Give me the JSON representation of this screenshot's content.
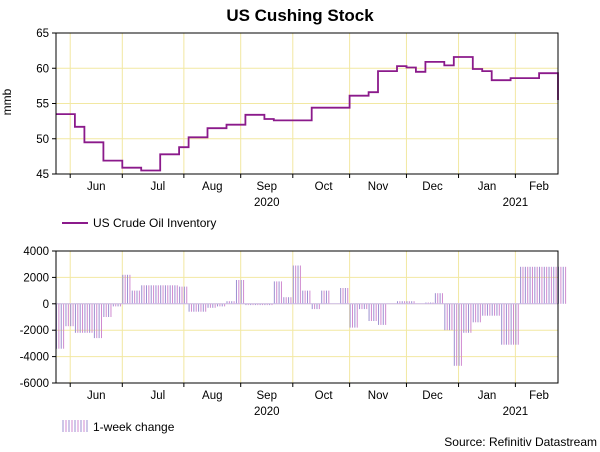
{
  "chart_data": [
    {
      "type": "line",
      "title": "US Cushing Stock",
      "ylabel": "mmb",
      "ylim": [
        45,
        65
      ],
      "yticks": [
        45,
        50,
        55,
        60,
        65
      ],
      "grid": true,
      "xlim": [
        0,
        106
      ],
      "month_ticks": [
        {
          "label": "Jun",
          "x": 8.5
        },
        {
          "label": "Jul",
          "x": 21.5
        },
        {
          "label": "Aug",
          "x": 33
        },
        {
          "label": "Sep",
          "x": 44.5
        },
        {
          "label": "Oct",
          "x": 56.5
        },
        {
          "label": "Nov",
          "x": 68
        },
        {
          "label": "Dec",
          "x": 79.5
        },
        {
          "label": "Jan",
          "x": 91
        },
        {
          "label": "Feb",
          "x": 102
        }
      ],
      "month_boundaries": [
        3,
        14,
        27,
        39,
        50,
        62,
        74,
        85,
        97
      ],
      "year_labels": [
        {
          "label": "2020",
          "x": 44.5
        },
        {
          "label": "2021",
          "x": 97
        }
      ],
      "series": [
        {
          "name": "US Crude Oil Inventory",
          "color": "#8b1a8b",
          "x": [
            0,
            2,
            4,
            6,
            8,
            10,
            12,
            14,
            16,
            18,
            20,
            22,
            24,
            26,
            28,
            30,
            32,
            34,
            36,
            38,
            40,
            42,
            44,
            46,
            48,
            50,
            52,
            54,
            56,
            58,
            60,
            62,
            64,
            66,
            68,
            70,
            72,
            74,
            76,
            78,
            80,
            82,
            84,
            86,
            88,
            90,
            92,
            94,
            96,
            98,
            100,
            102,
            104,
            106
          ],
          "values": [
            53.5,
            53.5,
            51.7,
            49.5,
            49.5,
            46.9,
            46.9,
            45.9,
            45.9,
            45.5,
            45.5,
            47.8,
            47.8,
            48.8,
            50.2,
            50.2,
            51.5,
            51.5,
            52.0,
            52.0,
            53.4,
            53.4,
            52.8,
            52.6,
            52.6,
            52.6,
            52.6,
            54.4,
            54.4,
            54.4,
            54.4,
            56.1,
            56.1,
            56.6,
            59.6,
            59.6,
            60.3,
            60.1,
            59.5,
            60.9,
            60.9,
            60.4,
            61.6,
            61.6,
            59.9,
            59.6,
            58.3,
            58.3,
            58.6,
            58.6,
            58.6,
            59.3,
            59.3,
            55.5
          ]
        }
      ]
    },
    {
      "type": "bar",
      "ylim": [
        -6000,
        4000
      ],
      "yticks": [
        -6000,
        -4000,
        -2000,
        0,
        2000,
        4000
      ],
      "grid": true,
      "xlim": [
        0,
        106
      ],
      "month_ticks": [
        {
          "label": "Jun",
          "x": 8.5
        },
        {
          "label": "Jul",
          "x": 21.5
        },
        {
          "label": "Aug",
          "x": 33
        },
        {
          "label": "Sep",
          "x": 44.5
        },
        {
          "label": "Oct",
          "x": 56.5
        },
        {
          "label": "Nov",
          "x": 68
        },
        {
          "label": "Dec",
          "x": 79.5
        },
        {
          "label": "Jan",
          "x": 91
        },
        {
          "label": "Feb",
          "x": 102
        }
      ],
      "month_boundaries": [
        3,
        14,
        27,
        39,
        50,
        62,
        74,
        85,
        97
      ],
      "year_labels": [
        {
          "label": "2020",
          "x": 44.5
        },
        {
          "label": "2021",
          "x": 97
        }
      ],
      "series": [
        {
          "name": "1-week change",
          "colors": [
            "#9b8fd0",
            "#d08ad0"
          ],
          "x": [
            0,
            2,
            4,
            6,
            8,
            10,
            12,
            14,
            16,
            18,
            20,
            22,
            24,
            26,
            28,
            30,
            32,
            34,
            36,
            38,
            40,
            42,
            44,
            46,
            48,
            50,
            52,
            54,
            56,
            58,
            60,
            62,
            64,
            66,
            68,
            70,
            72,
            74,
            76,
            78,
            80,
            82,
            84,
            86,
            88,
            90,
            92,
            94,
            96,
            98,
            100,
            102,
            104,
            106
          ],
          "values": [
            -3400,
            -1700,
            -2200,
            -2200,
            -2600,
            -1000,
            -200,
            2200,
            1000,
            1400,
            1400,
            1400,
            1400,
            1300,
            -600,
            -600,
            -300,
            -200,
            200,
            1800,
            -100,
            -100,
            -100,
            1700,
            500,
            2900,
            1000,
            -400,
            1000,
            0,
            1200,
            -1800,
            -400,
            -1300,
            -1600,
            0,
            200,
            200,
            0,
            100,
            800,
            -2000,
            -4700,
            -2200,
            -1400,
            -900,
            -900,
            -3100,
            -3100,
            2800,
            2800,
            2800,
            2800,
            2800
          ]
        }
      ]
    }
  ],
  "source": "Source: Refinitiv Datastream"
}
